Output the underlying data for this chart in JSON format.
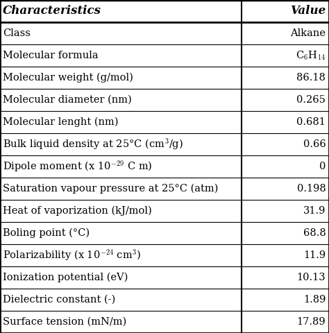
{
  "title_char": "Characteristics",
  "title_val": "Value",
  "rows": [
    {
      "char": "Class",
      "val": "Alkane"
    },
    {
      "char": "Molecular formula",
      "val": "C$_6$H$_{14}$"
    },
    {
      "char": "Molecular weight (g/mol)",
      "val": "86.18"
    },
    {
      "char": "Molecular diameter (nm)",
      "val": "0.265"
    },
    {
      "char": "Molecular lenght (nm)",
      "val": "0.681"
    },
    {
      "char": "Bulk liquid density at 25°C (cm$^3$/g)",
      "val": "0.66"
    },
    {
      "char": "Dipole moment (x 10$^{-29}$ C m)",
      "val": "0"
    },
    {
      "char": "Saturation vapour pressure at 25°C (atm)",
      "val": "0.198"
    },
    {
      "char": "Heat of vaporization (kJ/mol)",
      "val": "31.9"
    },
    {
      "char": "Boling point (°C)",
      "val": "68.8"
    },
    {
      "char": "Polarizability (x 10$^{-24}$ cm$^3$)",
      "val": "11.9"
    },
    {
      "char": "Ionization potential (eV)",
      "val": "10.13"
    },
    {
      "char": "Dielectric constant (-)",
      "val": "1.89"
    },
    {
      "char": "Surface tension (mN/m)",
      "val": "17.89"
    }
  ],
  "bg_color": "#ffffff",
  "text_color": "#000000",
  "line_color": "#000000",
  "font_size": 10.5,
  "header_font_size": 12.0,
  "col_split": 0.735,
  "fig_width": 4.74,
  "fig_height": 4.8,
  "dpi": 100
}
